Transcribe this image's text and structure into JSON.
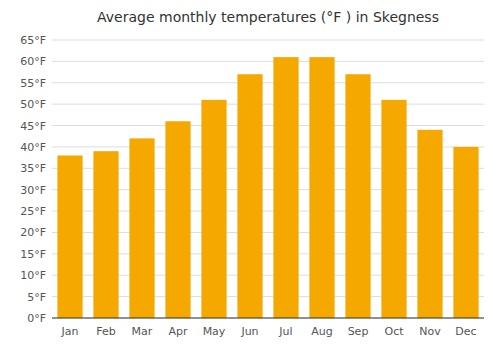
{
  "chart_data": {
    "type": "bar",
    "title": "Average monthly temperatures (°F ) in Skegness",
    "categories": [
      "Jan",
      "Feb",
      "Mar",
      "Apr",
      "May",
      "Jun",
      "Jul",
      "Aug",
      "Sep",
      "Oct",
      "Nov",
      "Dec"
    ],
    "values": [
      38,
      39,
      42,
      46,
      51,
      57,
      61,
      61,
      57,
      51,
      44,
      40
    ],
    "color": "#F5A800",
    "ylim": [
      0,
      65
    ],
    "yticks": [
      {
        "value": 0,
        "label": "0°F"
      },
      {
        "value": 5,
        "label": "5°F"
      },
      {
        "value": 10,
        "label": "10°F"
      },
      {
        "value": 15,
        "label": "15°F"
      },
      {
        "value": 20,
        "label": "20°F"
      },
      {
        "value": 25,
        "label": "25°F"
      },
      {
        "value": 30,
        "label": "30°F"
      },
      {
        "value": 35,
        "label": "35°F"
      },
      {
        "value": 40,
        "label": "40°F"
      },
      {
        "value": 45,
        "label": "45°F"
      },
      {
        "value": 50,
        "label": "50°F"
      },
      {
        "value": 55,
        "label": "55°F"
      },
      {
        "value": 60,
        "label": "60°F"
      },
      {
        "value": 65,
        "label": "65°F"
      }
    ],
    "grid": true
  }
}
